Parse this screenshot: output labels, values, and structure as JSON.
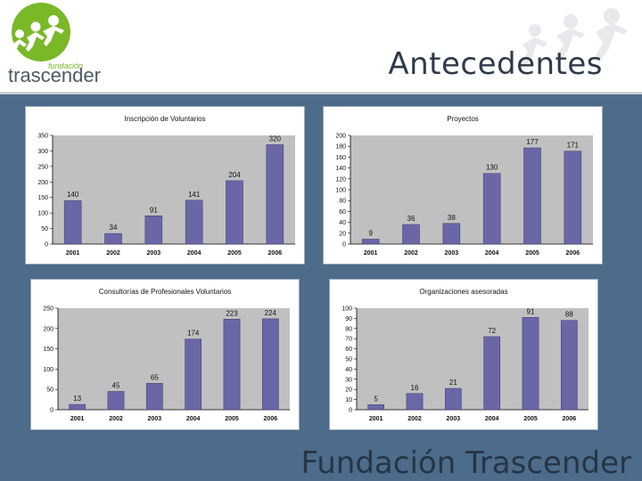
{
  "header": {
    "logo_small": "fundación",
    "logo_brand": "trascender",
    "title": "Antecedentes"
  },
  "footer": {
    "text": "Fundación Trascender"
  },
  "colors": {
    "bar": "#6a67a6",
    "plot_bg": "#c0c0c0",
    "logo_green": "#7ab828",
    "logo_gray": "#4d5a64"
  },
  "chart_data": [
    {
      "type": "bar",
      "title": "Inscripción de Voluntarios",
      "categories": [
        "2001",
        "2002",
        "2003",
        "2004",
        "2005",
        "2006"
      ],
      "values": [
        140,
        34,
        91,
        141,
        204,
        320
      ],
      "labels": [
        "140",
        "34",
        "91",
        "141",
        "204",
        "320"
      ],
      "ylim": [
        0,
        350
      ],
      "yticks": [
        0,
        50,
        100,
        150,
        200,
        250,
        300,
        350
      ],
      "ytick_labels": [
        "0",
        "50",
        "100",
        "150",
        "200",
        "250",
        "300",
        "350"
      ]
    },
    {
      "type": "bar",
      "title": "Proyectos",
      "categories": [
        "2001",
        "2002",
        "2003",
        "2004",
        "2005",
        "2006"
      ],
      "values": [
        9,
        36,
        38,
        130,
        177,
        171
      ],
      "labels": [
        "9",
        "36",
        "38",
        "130",
        "177",
        "171"
      ],
      "ylim": [
        0,
        200
      ],
      "yticks": [
        0,
        20,
        40,
        60,
        80,
        100,
        120,
        140,
        160,
        180,
        200
      ],
      "ytick_labels": [
        "0",
        "20",
        "40",
        "60",
        "80",
        "100",
        "120",
        "140",
        "160",
        "180",
        "200"
      ]
    },
    {
      "type": "bar",
      "title": "Consultorías de Profesionales Voluntarios",
      "categories": [
        "2001",
        "2002",
        "2003",
        "2004",
        "2005",
        "2006"
      ],
      "values": [
        13,
        45,
        65,
        174,
        223,
        224
      ],
      "labels": [
        "13",
        "45",
        "65",
        "174",
        "223",
        "224"
      ],
      "ylim": [
        0,
        250
      ],
      "yticks": [
        0,
        50,
        100,
        150,
        200,
        250
      ],
      "ytick_labels": [
        "0",
        "50",
        "100",
        "150",
        "200",
        "250"
      ]
    },
    {
      "type": "bar",
      "title": "Organizaciones asesoradas",
      "categories": [
        "2001",
        "2002",
        "2003",
        "2004",
        "2005",
        "2006"
      ],
      "values": [
        5,
        16,
        21,
        72,
        91,
        88
      ],
      "labels": [
        "5",
        "16",
        "21",
        "72",
        "91",
        "88"
      ],
      "ylim": [
        0,
        100
      ],
      "yticks": [
        0,
        10,
        20,
        30,
        40,
        50,
        60,
        70,
        80,
        90,
        100
      ],
      "ytick_labels": [
        "0",
        "10",
        "20",
        "30",
        "40",
        "50",
        "60",
        "70",
        "80",
        "90",
        "100"
      ]
    }
  ]
}
